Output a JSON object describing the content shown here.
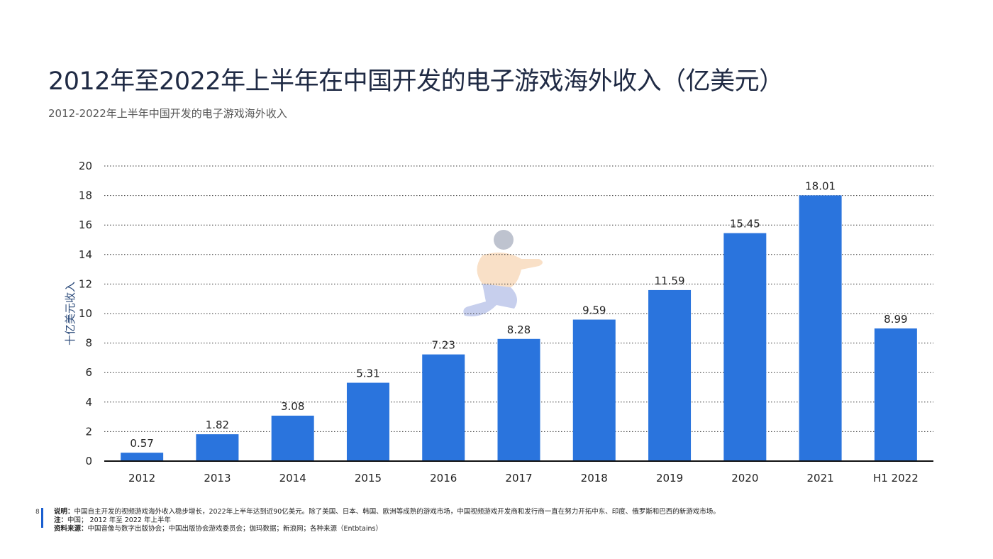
{
  "page": {
    "title": "2012年至2022年上半年在中国开发的电子游戏海外收入（亿美元）",
    "subtitle": "2012-2022年上半年中国开发的电子游戏海外收入",
    "page_number": "8",
    "footer": {
      "note_label": "说明：",
      "note_text": "中国自主开发的视频游戏海外收入稳步增长，2022年上半年达到近90亿美元。除了美国、日本、韩国、欧洲等成熟的游戏市场，中国视频游戏开发商和发行商一直在努力开拓中东、印度、俄罗斯和巴西的新游戏市场。",
      "remark_label": "注：",
      "remark_text": "中国； 2012 年至 2022 年上半年",
      "source_label": "资料来源：",
      "source_text": "中国音像与数字出版协会；中国出版协会游戏委员会；伽玛数据；新浪网；各种来源（Entbtains）"
    }
  },
  "colors": {
    "bar": "#2a74dd",
    "title": "#1f2a44",
    "axis": "#111111",
    "grid": "#333333"
  },
  "chart_data": {
    "type": "bar",
    "title": "",
    "xlabel": "",
    "ylabel": "十亿美元收入",
    "categories": [
      "2012",
      "2013",
      "2014",
      "2015",
      "2016",
      "2017",
      "2018",
      "2019",
      "2020",
      "2021",
      "H1 2022"
    ],
    "values": [
      0.57,
      1.82,
      3.08,
      5.31,
      7.23,
      8.28,
      9.59,
      11.59,
      15.45,
      18.01,
      8.99
    ],
    "data_labels": [
      "0.57",
      "1.82",
      "3.08",
      "5.31",
      "7.23",
      "8.28",
      "9.59",
      "11.59",
      "15.45",
      "18.01",
      "8.99"
    ],
    "ylim": [
      0,
      20
    ],
    "yticks": [
      "0",
      "2",
      "4",
      "6",
      "8",
      "10",
      "12",
      "14",
      "16",
      "18",
      "20"
    ],
    "grid": true,
    "legend": "none"
  }
}
